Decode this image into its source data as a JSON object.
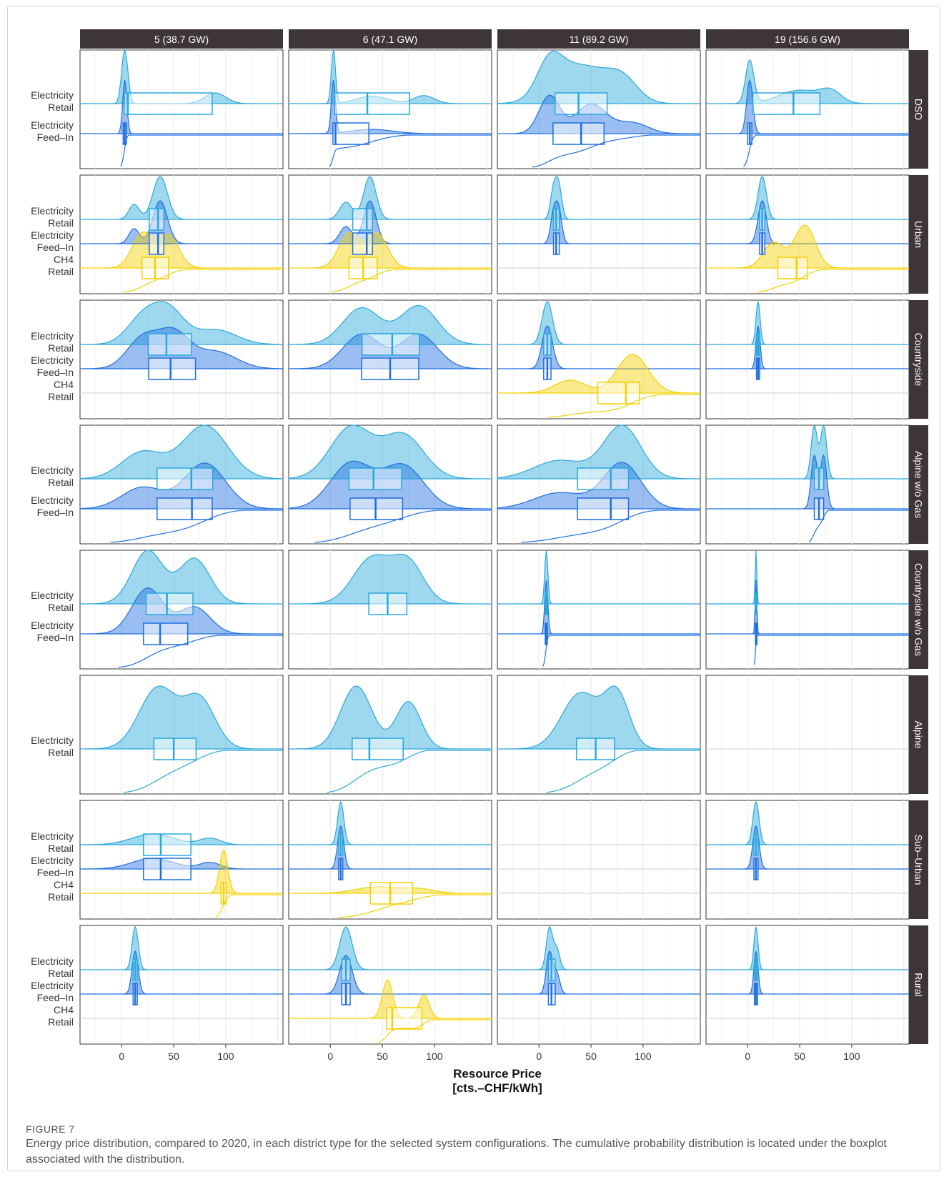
{
  "chart_data": {
    "type": "ridgeline-boxplot-ecdf",
    "columns": [
      "5 (38.7 GW)",
      "6 (47.1 GW)",
      "11 (89.2 GW)",
      "19 (156.6 GW)"
    ],
    "rows": [
      "DSO",
      "Urban",
      "Countryside",
      "Alpine w/o Gas",
      "Countryside w/o Gas",
      "Alpine",
      "Sub–Urban",
      "Rural"
    ],
    "xlim": [
      -40,
      155
    ],
    "x_ticks": [
      0,
      50,
      100
    ],
    "xlabel": "Resource Price\n[cts.–CHF/kWh]",
    "colors": {
      "retail": "#29a8dc",
      "feedin": "#1f6fe0",
      "ch4": "#f5d000",
      "grid": "#ebebeb",
      "strip": "#3d3536"
    },
    "panels": [
      {
        "row": 0,
        "series": [
          "Electricity Retail",
          "Electricity Feed–In"
        ],
        "cells": [
          [
            {
              "peaks": [
                [
                  3,
                  1.0,
                  3
                ],
                [
                  90,
                  0.2,
                  10
                ]
              ]
            },
            {
              "peaks": [
                [
                  3,
                  1.0,
                  2
                ]
              ]
            }
          ],
          [
            {
              "peaks": [
                [
                  3,
                  1.0,
                  2
                ],
                [
                  40,
                  0.14,
                  15
                ],
                [
                  90,
                  0.15,
                  10
                ]
              ]
            },
            {
              "peaks": [
                [
                  3,
                  1.0,
                  2
                ],
                [
                  40,
                  0.08,
                  20
                ]
              ]
            }
          ],
          [
            {
              "peaks": [
                [
                  10,
                  0.6,
                  12
                ],
                [
                  40,
                  0.7,
                  25
                ],
                [
                  80,
                  0.4,
                  15
                ]
              ]
            },
            {
              "peaks": [
                [
                  10,
                  0.7,
                  10
                ],
                [
                  50,
                  0.55,
                  15
                ],
                [
                  90,
                  0.2,
                  15
                ]
              ]
            }
          ],
          [
            {
              "peaks": [
                [
                  2,
                  0.8,
                  4
                ],
                [
                  50,
                  0.25,
                  20
                ],
                [
                  80,
                  0.2,
                  10
                ]
              ]
            },
            {
              "peaks": [
                [
                  2,
                  1.0,
                  3
                ]
              ]
            }
          ]
        ]
      },
      {
        "row": 1,
        "series": [
          "Electricity Retail",
          "Electricity Feed–In",
          "CH4 Retail"
        ],
        "cells": [
          [
            {
              "peaks": [
                [
                  12,
                  0.35,
                  5
                ],
                [
                  37,
                  1.0,
                  7
                ]
              ]
            },
            {
              "peaks": [
                [
                  12,
                  0.35,
                  5
                ],
                [
                  37,
                  1.0,
                  7
                ]
              ]
            },
            {
              "peaks": [
                [
                  20,
                  0.8,
                  10
                ],
                [
                  45,
                  0.75,
                  10
                ]
              ]
            }
          ],
          [
            {
              "peaks": [
                [
                  15,
                  0.4,
                  6
                ],
                [
                  38,
                  1.0,
                  6
                ]
              ]
            },
            {
              "peaks": [
                [
                  15,
                  0.4,
                  6
                ],
                [
                  38,
                  1.0,
                  6
                ]
              ]
            },
            {
              "peaks": [
                [
                  18,
                  0.8,
                  10
                ],
                [
                  45,
                  0.8,
                  10
                ]
              ]
            }
          ],
          [
            {
              "peaks": [
                [
                  14,
                  0.9,
                  3
                ],
                [
                  19,
                  1.0,
                  3
                ]
              ]
            },
            {
              "peaks": [
                [
                  14,
                  0.9,
                  3
                ],
                [
                  19,
                  1.0,
                  3
                ]
              ]
            },
            {
              "peaks": []
            }
          ],
          [
            {
              "peaks": [
                [
                  14,
                  1.0,
                  4
                ]
              ]
            },
            {
              "peaks": [
                [
                  14,
                  1.0,
                  4
                ]
              ]
            },
            {
              "peaks": [
                [
                  25,
                  0.6,
                  10
                ],
                [
                  55,
                  1.0,
                  10
                ]
              ]
            }
          ]
        ]
      },
      {
        "row": 2,
        "series": [
          "Electricity Retail",
          "Electricity Feed–In",
          "CH4 Retail"
        ],
        "cells": [
          [
            {
              "peaks": [
                [
                  20,
                  0.7,
                  15
                ],
                [
                  45,
                  0.9,
                  15
                ],
                [
                  90,
                  0.4,
                  20
                ]
              ]
            },
            {
              "peaks": [
                [
                  20,
                  0.7,
                  15
                ],
                [
                  50,
                  0.8,
                  15
                ],
                [
                  90,
                  0.4,
                  20
                ]
              ]
            },
            {
              "peaks": []
            }
          ],
          [
            {
              "peaks": [
                [
                  30,
                  0.85,
                  18
                ],
                [
                  85,
                  0.9,
                  18
                ]
              ]
            },
            {
              "peaks": [
                [
                  30,
                  0.8,
                  18
                ],
                [
                  85,
                  0.8,
                  18
                ]
              ]
            },
            {
              "peaks": []
            }
          ],
          [
            {
              "peaks": [
                [
                  8,
                  1.0,
                  5
                ]
              ]
            },
            {
              "peaks": [
                [
                  8,
                  1.0,
                  5
                ]
              ]
            },
            {
              "peaks": [
                [
                  30,
                  0.3,
                  15
                ],
                [
                  90,
                  0.9,
                  15
                ]
              ]
            }
          ],
          [
            {
              "peaks": [
                [
                  10,
                  1.0,
                  2
                ]
              ]
            },
            {
              "peaks": [
                [
                  10,
                  1.0,
                  2
                ]
              ]
            },
            {
              "peaks": []
            }
          ]
        ]
      },
      {
        "row": 3,
        "series": [
          "Electricity Retail",
          "Electricity Feed–In"
        ],
        "cells": [
          [
            {
              "peaks": [
                [
                  20,
                  0.5,
                  20
                ],
                [
                  80,
                  1.0,
                  22
                ]
              ]
            },
            {
              "peaks": [
                [
                  20,
                  0.4,
                  20
                ],
                [
                  80,
                  0.85,
                  20
                ]
              ]
            }
          ],
          [
            {
              "peaks": [
                [
                  20,
                  1.0,
                  20
                ],
                [
                  70,
                  0.85,
                  20
                ]
              ]
            },
            {
              "peaks": [
                [
                  20,
                  0.85,
                  20
                ],
                [
                  70,
                  0.8,
                  20
                ]
              ]
            }
          ],
          [
            {
              "peaks": [
                [
                  20,
                  0.35,
                  25
                ],
                [
                  80,
                  1.0,
                  18
                ]
              ]
            },
            {
              "peaks": [
                [
                  20,
                  0.3,
                  25
                ],
                [
                  80,
                  0.85,
                  18
                ]
              ]
            }
          ],
          [
            {
              "peaks": [
                [
                  64,
                  1.0,
                  3
                ],
                [
                  73,
                  1.0,
                  3
                ]
              ]
            },
            {
              "peaks": [
                [
                  64,
                  1.0,
                  3
                ],
                [
                  73,
                  1.0,
                  3
                ]
              ]
            }
          ]
        ]
      },
      {
        "row": 4,
        "series": [
          "Electricity Retail",
          "Electricity Feed–In"
        ],
        "cells": [
          [
            {
              "peaks": [
                [
                  25,
                  1.0,
                  15
                ],
                [
                  70,
                  0.85,
                  15
                ]
              ]
            },
            {
              "peaks": [
                [
                  25,
                  0.85,
                  15
                ],
                [
                  70,
                  0.5,
                  15
                ]
              ]
            }
          ],
          [
            {
              "peaks": [
                [
                  40,
                  0.85,
                  18
                ],
                [
                  75,
                  0.75,
                  15
                ]
              ]
            },
            {
              "peaks": []
            }
          ],
          [
            {
              "peaks": [
                [
                  7,
                  1.0,
                  1.5
                ]
              ]
            },
            {
              "peaks": [
                [
                  7,
                  1.0,
                  1.5
                ]
              ]
            }
          ],
          [
            {
              "peaks": [
                [
                  8,
                  1.0,
                  0.8
                ]
              ]
            },
            {
              "peaks": [
                [
                  8,
                  1.0,
                  0.8
                ]
              ]
            }
          ]
        ]
      },
      {
        "row": 5,
        "series": [
          "Electricity Retail"
        ],
        "cells": [
          [
            {
              "peaks": [
                [
                  35,
                  1.0,
                  18
                ],
                [
                  75,
                  0.8,
                  15
                ]
              ]
            }
          ],
          [
            {
              "peaks": [
                [
                  25,
                  1.0,
                  15
                ],
                [
                  75,
                  0.75,
                  12
                ]
              ]
            }
          ],
          [
            {
              "peaks": [
                [
                  40,
                  1.0,
                  18
                ],
                [
                  75,
                  0.95,
                  12
                ]
              ]
            }
          ],
          [
            {
              "peaks": []
            }
          ]
        ]
      },
      {
        "row": 6,
        "series": [
          "Electricity Retail",
          "Electricity Feed–In",
          "CH4 Retail"
        ],
        "cells": [
          [
            {
              "peaks": [
                [
                  30,
                  0.25,
                  20
                ],
                [
                  85,
                  0.15,
                  10
                ]
              ]
            },
            {
              "peaks": [
                [
                  30,
                  0.25,
                  20
                ],
                [
                  85,
                  0.15,
                  10
                ]
              ]
            },
            {
              "peaks": [
                [
                  98,
                  1.0,
                  4
                ]
              ]
            }
          ],
          [
            {
              "peaks": [
                [
                  10,
                  1.0,
                  3
                ]
              ]
            },
            {
              "peaks": [
                [
                  10,
                  1.0,
                  3
                ]
              ]
            },
            {
              "peaks": [
                [
                  45,
                  0.15,
                  20
                ],
                [
                  85,
                  0.1,
                  15
                ]
              ]
            }
          ],
          [
            {
              "peaks": []
            },
            {
              "peaks": []
            },
            {
              "peaks": []
            }
          ],
          [
            {
              "peaks": [
                [
                  8,
                  1.0,
                  3
                ]
              ]
            },
            {
              "peaks": [
                [
                  8,
                  1.0,
                  3
                ]
              ]
            },
            {
              "peaks": []
            }
          ]
        ]
      },
      {
        "row": 7,
        "series": [
          "Electricity Retail",
          "Electricity Feed–In",
          "CH4 Retail"
        ],
        "cells": [
          [
            {
              "peaks": [
                [
                  13,
                  1.0,
                  3
                ]
              ]
            },
            {
              "peaks": [
                [
                  13,
                  1.0,
                  3
                ]
              ]
            },
            {
              "peaks": []
            }
          ],
          [
            {
              "peaks": [
                [
                  15,
                  1.0,
                  6
                ]
              ]
            },
            {
              "peaks": [
                [
                  15,
                  0.9,
                  6
                ]
              ]
            },
            {
              "peaks": [
                [
                  55,
                  0.9,
                  5
                ],
                [
                  90,
                  0.55,
                  5
                ]
              ]
            }
          ],
          [
            {
              "peaks": [
                [
                  10,
                  1.0,
                  3
                ],
                [
                  17,
                  0.5,
                  3
                ]
              ]
            },
            {
              "peaks": [
                [
                  10,
                  1.0,
                  3
                ],
                [
                  17,
                  0.5,
                  3
                ]
              ]
            },
            {
              "peaks": []
            }
          ],
          [
            {
              "peaks": [
                [
                  8,
                  1.0,
                  2
                ]
              ]
            },
            {
              "peaks": [
                [
                  8,
                  1.0,
                  2
                ]
              ]
            },
            {
              "peaks": []
            }
          ]
        ]
      }
    ]
  },
  "caption": {
    "label": "FIGURE 7",
    "text": "Energy price distribution, compared to 2020, in each district type for the selected system configurations. The cumulative probability distribution is located under the boxplot associated with the distribution."
  }
}
